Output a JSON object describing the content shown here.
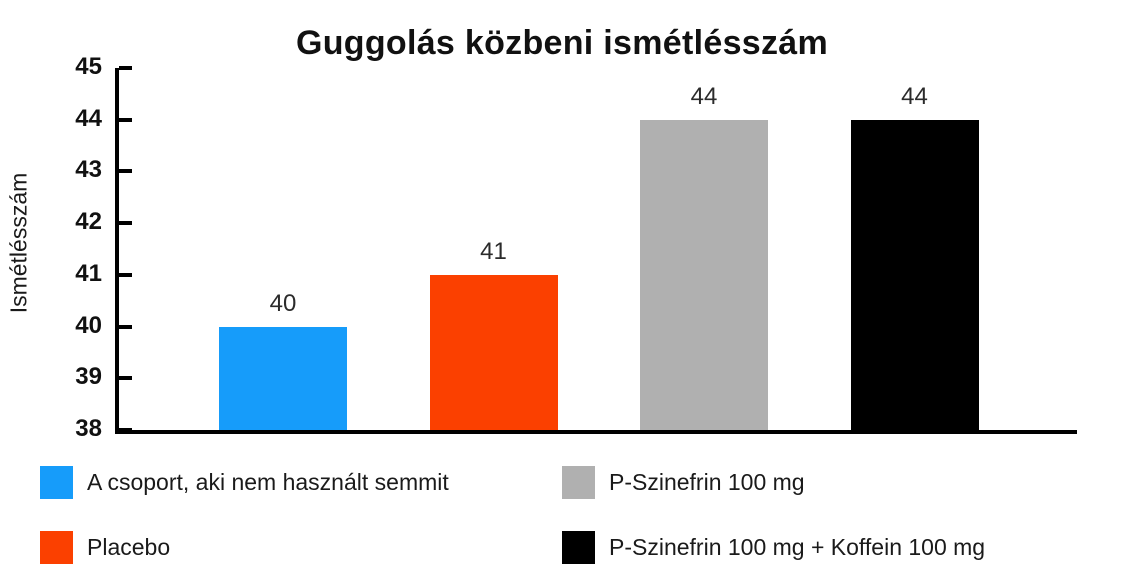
{
  "chart_data": {
    "type": "bar",
    "title": "Guggolás közbeni ismétlésszám",
    "xlabel": "",
    "ylabel": "Ismétlésszám",
    "ylim": [
      38,
      45
    ],
    "yticks": [
      45,
      44,
      43,
      42,
      41,
      40,
      39,
      38
    ],
    "grid": false,
    "legend_position": "bottom",
    "categories": [
      "A csoport, aki nem használt semmit",
      "Placebo",
      "P-Szinefrin 100 mg",
      "P-Szinefrin 100 mg + Koffein 100 mg"
    ],
    "values": [
      40,
      41,
      44,
      44
    ],
    "bar_value_labels": [
      "40",
      "41",
      "44",
      "44"
    ],
    "colors": [
      "#169CFA",
      "#FB4000",
      "#B0B0B0",
      "#000000"
    ]
  },
  "legend": {
    "items": [
      {
        "label": "A csoport, aki nem használt semmit",
        "color": "#169CFA"
      },
      {
        "label": "Placebo",
        "color": "#FB4000"
      },
      {
        "label": "P-Szinefrin 100 mg",
        "color": "#B0B0B0"
      },
      {
        "label": "P-Szinefrin 100 mg + Koffein 100 mg",
        "color": "#000000"
      }
    ]
  }
}
